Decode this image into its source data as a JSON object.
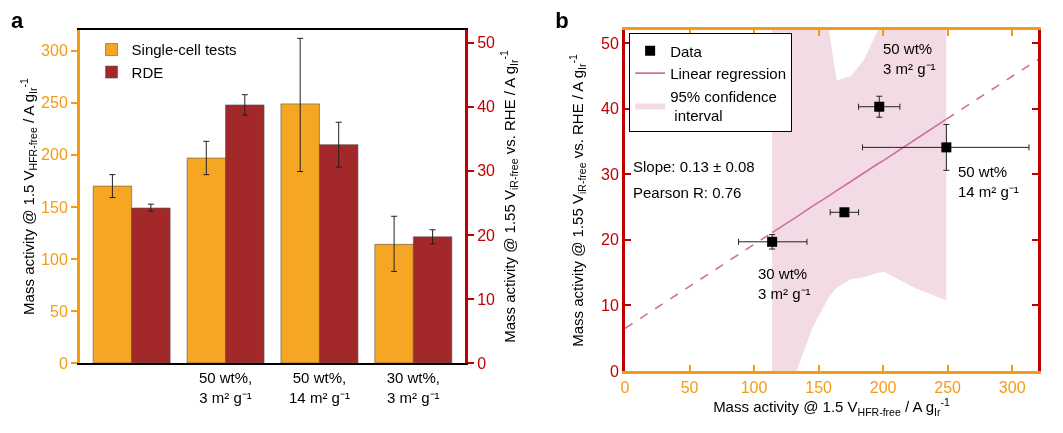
{
  "chart_data": [
    {
      "type": "bar",
      "title": "a",
      "legend": "top left",
      "categories": [
        null,
        "50 wt%,\n3 m² g⁻¹",
        "50 wt%,\n14 m² g⁻¹",
        "30 wt%,\n3 m² g⁻¹"
      ],
      "ylabel": "Mass activity @ 1.5 V$_{HFR-free}$ / A g$_{Ir}$$^{-1}$",
      "y2label": "Mass activity @ 1.55 V$_{iR-free}$ vs. RHE / A g$_{Ir}$$^{-1}$",
      "ylim": [
        0,
        320
      ],
      "yticks": [
        0,
        50,
        100,
        150,
        200,
        250,
        300
      ],
      "y2lim": [
        0,
        52
      ],
      "y2ticks": [
        0,
        10,
        20,
        30,
        40,
        50
      ],
      "series": [
        {
          "name": "Single-cell tests",
          "color": "#f5a623",
          "values": [
            170,
            197,
            249,
            114
          ],
          "errors": [
            [
              159,
              181
            ],
            [
              181,
              213
            ],
            [
              184,
              312
            ],
            [
              88,
              141
            ]
          ]
        },
        {
          "name": "RDE",
          "color": "#a3282a",
          "axis": "y2",
          "values": [
            24.2,
            40.3,
            34.1,
            19.7
          ],
          "errors": [
            [
              23.7,
              24.8
            ],
            [
              38.7,
              41.9
            ],
            [
              30.6,
              37.6
            ],
            [
              18.6,
              20.8
            ]
          ]
        }
      ]
    },
    {
      "type": "scatter",
      "title": "b",
      "legend": "top left",
      "xlabel": "Mass activity @ 1.5 V$_{HFR-free}$ / A g$_{Ir}$$^{-1}$",
      "ylabel": "Mass activity @ 1.55 V$_{iR-free}$ vs. RHE / A g$_{Ir}$$^{-1}$",
      "xlim": [
        0,
        320
      ],
      "xticks": [
        0,
        50,
        100,
        150,
        200,
        250,
        300
      ],
      "ylim": [
        0,
        52
      ],
      "yticks": [
        0,
        10,
        20,
        30,
        40,
        50
      ],
      "series": [
        {
          "name": "Linear regression",
          "type": "line",
          "color": "#d0709a",
          "line_style": "solid",
          "x": [
            114,
            133,
            145,
            158,
            164,
            175,
            185,
            196,
            201,
            225,
            249
          ],
          "values": [
            21.1,
            23.5,
            25.1,
            26.7,
            27.5,
            28.9,
            30.2,
            31.6,
            32.2,
            35.3,
            38.4
          ],
          "upper": [
            52,
            52,
            52,
            52,
            44.3,
            45.0,
            47.4,
            52,
            52,
            52,
            52
          ],
          "lower": [
            0,
            0,
            6.5,
            11.3,
            12.7,
            14.0,
            14.3,
            15.0,
            15.1,
            12.6,
            10.8
          ]
        },
        {
          "type": "line",
          "color": "#d0709a",
          "line_style": "dashed",
          "x": [
            0,
            114
          ],
          "values": [
            6.5,
            21.1
          ]
        },
        {
          "type": "line",
          "color": "#d0709a",
          "line_style": "dashed",
          "x": [
            249,
            320
          ],
          "values": [
            38.4,
            47.5
          ]
        },
        {
          "name": "Data",
          "type": "scatter",
          "marker": "square",
          "color": "#000000",
          "x": [
            114,
            170,
            197,
            249
          ],
          "values": [
            19.7,
            24.2,
            40.3,
            34.1
          ],
          "errors": [
            [
              18.6,
              20.8
            ],
            [
              23.7,
              24.8
            ],
            [
              38.7,
              41.9
            ],
            [
              30.6,
              37.6
            ]
          ],
          "xerrors": [
            [
              88,
              141
            ],
            [
              159,
              181
            ],
            [
              181,
              213
            ],
            [
              184,
              313
            ]
          ]
        }
      ],
      "annotations": [
        "95% confidence\n interval",
        "Slope: 0.13 ± 0.08",
        "Pearson R: 0.76",
        {
          "text": "50 wt%\n3 m² g⁻¹",
          "x": 197,
          "y": 40.3
        },
        {
          "text": "50 wt%\n14 m² g⁻¹",
          "x": 249,
          "y": 34.1
        },
        {
          "text": "30 wt%\n3 m² g⁻¹",
          "x": 114,
          "y": 19.7
        }
      ]
    }
  ]
}
